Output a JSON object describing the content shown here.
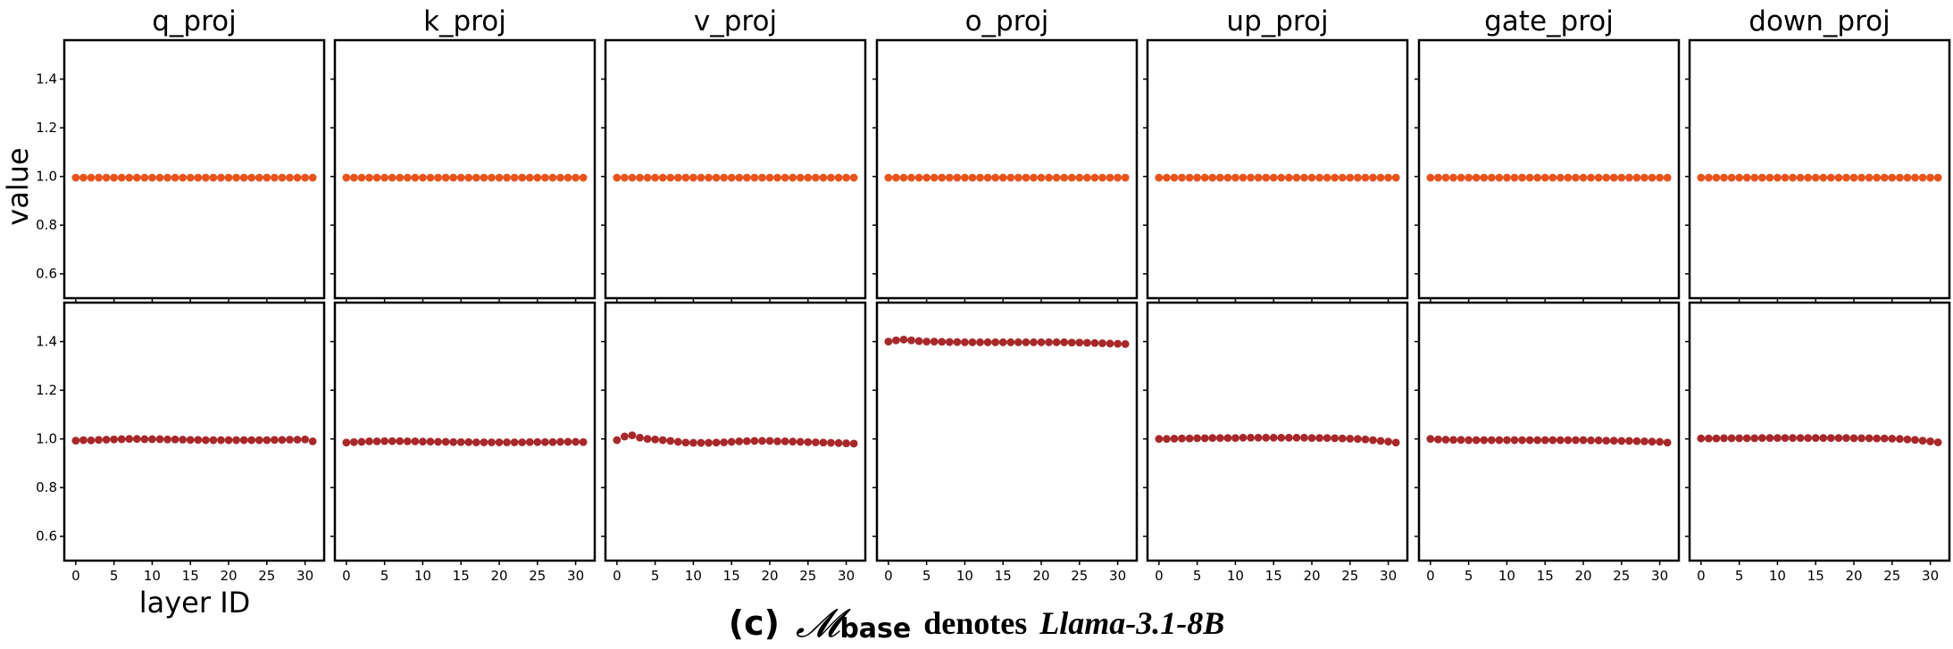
{
  "chart_data": {
    "type": "scatter",
    "layout": "grid of 2 rows x 7 columns",
    "columns": [
      "q_proj",
      "k_proj",
      "v_proj",
      "o_proj",
      "up_proj",
      "gate_proj",
      "down_proj"
    ],
    "xlabel": "layer ID",
    "ylabel": "value",
    "xlim": [
      -1.5,
      32.5
    ],
    "ylim": [
      0.5,
      1.56
    ],
    "xticks": [
      0,
      5,
      10,
      15,
      20,
      25,
      30
    ],
    "yticks": [
      0.6,
      0.8,
      1.0,
      1.2,
      1.4
    ],
    "x": [
      0,
      1,
      2,
      3,
      4,
      5,
      6,
      7,
      8,
      9,
      10,
      11,
      12,
      13,
      14,
      15,
      16,
      17,
      18,
      19,
      20,
      21,
      22,
      23,
      24,
      25,
      26,
      27,
      28,
      29,
      30,
      31
    ],
    "rows": [
      {
        "color": "#e8531c",
        "series": [
          {
            "name": "q_proj",
            "values": [
              0.995,
              0.995,
              0.995,
              0.995,
              0.995,
              0.995,
              0.995,
              0.995,
              0.995,
              0.995,
              0.995,
              0.995,
              0.995,
              0.995,
              0.995,
              0.995,
              0.995,
              0.995,
              0.995,
              0.995,
              0.995,
              0.995,
              0.995,
              0.995,
              0.995,
              0.995,
              0.995,
              0.995,
              0.995,
              0.995,
              0.995,
              0.995
            ]
          },
          {
            "name": "k_proj",
            "values": [
              0.995,
              0.995,
              0.995,
              0.995,
              0.995,
              0.995,
              0.995,
              0.995,
              0.995,
              0.995,
              0.995,
              0.995,
              0.995,
              0.995,
              0.995,
              0.995,
              0.995,
              0.995,
              0.995,
              0.995,
              0.995,
              0.995,
              0.995,
              0.995,
              0.995,
              0.995,
              0.995,
              0.995,
              0.995,
              0.995,
              0.995,
              0.995
            ]
          },
          {
            "name": "v_proj",
            "values": [
              0.995,
              0.995,
              0.995,
              0.995,
              0.995,
              0.995,
              0.995,
              0.995,
              0.995,
              0.995,
              0.995,
              0.995,
              0.995,
              0.995,
              0.995,
              0.995,
              0.995,
              0.995,
              0.995,
              0.995,
              0.995,
              0.995,
              0.995,
              0.995,
              0.995,
              0.995,
              0.995,
              0.995,
              0.995,
              0.995,
              0.995,
              0.995
            ]
          },
          {
            "name": "o_proj",
            "values": [
              0.995,
              0.995,
              0.995,
              0.995,
              0.995,
              0.995,
              0.995,
              0.995,
              0.995,
              0.995,
              0.995,
              0.995,
              0.995,
              0.995,
              0.995,
              0.995,
              0.995,
              0.995,
              0.995,
              0.995,
              0.995,
              0.995,
              0.995,
              0.995,
              0.995,
              0.995,
              0.995,
              0.995,
              0.995,
              0.995,
              0.995,
              0.995
            ]
          },
          {
            "name": "up_proj",
            "values": [
              0.995,
              0.995,
              0.995,
              0.995,
              0.995,
              0.995,
              0.995,
              0.995,
              0.995,
              0.995,
              0.995,
              0.995,
              0.995,
              0.995,
              0.995,
              0.995,
              0.995,
              0.995,
              0.995,
              0.995,
              0.995,
              0.995,
              0.995,
              0.995,
              0.995,
              0.995,
              0.995,
              0.995,
              0.995,
              0.995,
              0.995,
              0.995
            ]
          },
          {
            "name": "gate_proj",
            "values": [
              0.995,
              0.995,
              0.995,
              0.995,
              0.995,
              0.995,
              0.995,
              0.995,
              0.995,
              0.995,
              0.995,
              0.995,
              0.995,
              0.995,
              0.995,
              0.995,
              0.995,
              0.995,
              0.995,
              0.995,
              0.995,
              0.995,
              0.995,
              0.995,
              0.995,
              0.995,
              0.995,
              0.995,
              0.995,
              0.995,
              0.995,
              0.995
            ]
          },
          {
            "name": "down_proj",
            "values": [
              0.995,
              0.995,
              0.995,
              0.995,
              0.995,
              0.995,
              0.995,
              0.995,
              0.995,
              0.995,
              0.995,
              0.995,
              0.995,
              0.995,
              0.995,
              0.995,
              0.995,
              0.995,
              0.995,
              0.995,
              0.995,
              0.995,
              0.995,
              0.995,
              0.995,
              0.995,
              0.995,
              0.995,
              0.995,
              0.995,
              0.995,
              0.995
            ]
          }
        ]
      },
      {
        "color": "#a8282a",
        "series": [
          {
            "name": "q_proj",
            "values": [
              0.993,
              0.995,
              0.994,
              0.996,
              0.997,
              0.998,
              0.999,
              1.0,
              1.0,
              0.999,
              0.999,
              0.999,
              0.998,
              0.998,
              0.997,
              0.996,
              0.996,
              0.995,
              0.995,
              0.995,
              0.995,
              0.995,
              0.995,
              0.995,
              0.995,
              0.995,
              0.996,
              0.996,
              0.997,
              0.997,
              0.998,
              0.99
            ]
          },
          {
            "name": "k_proj",
            "values": [
              0.985,
              0.987,
              0.988,
              0.99,
              0.99,
              0.991,
              0.991,
              0.991,
              0.99,
              0.99,
              0.989,
              0.989,
              0.988,
              0.988,
              0.987,
              0.987,
              0.987,
              0.986,
              0.986,
              0.986,
              0.986,
              0.986,
              0.986,
              0.986,
              0.987,
              0.987,
              0.987,
              0.987,
              0.988,
              0.988,
              0.988,
              0.987
            ]
          },
          {
            "name": "v_proj",
            "values": [
              0.995,
              1.01,
              1.015,
              1.005,
              1.0,
              0.998,
              0.995,
              0.992,
              0.988,
              0.985,
              0.984,
              0.984,
              0.984,
              0.985,
              0.986,
              0.988,
              0.99,
              0.991,
              0.992,
              0.992,
              0.992,
              0.99,
              0.99,
              0.989,
              0.988,
              0.987,
              0.986,
              0.985,
              0.984,
              0.983,
              0.982,
              0.981
            ]
          },
          {
            "name": "o_proj",
            "values": [
              1.4,
              1.405,
              1.408,
              1.405,
              1.402,
              1.4,
              1.4,
              1.399,
              1.398,
              1.398,
              1.397,
              1.397,
              1.397,
              1.397,
              1.397,
              1.397,
              1.397,
              1.397,
              1.397,
              1.397,
              1.397,
              1.397,
              1.397,
              1.397,
              1.396,
              1.396,
              1.395,
              1.394,
              1.393,
              1.392,
              1.391,
              1.39
            ]
          },
          {
            "name": "up_proj",
            "values": [
              1.0,
              1.0,
              1.001,
              1.002,
              1.002,
              1.003,
              1.003,
              1.004,
              1.004,
              1.004,
              1.004,
              1.005,
              1.005,
              1.005,
              1.005,
              1.005,
              1.005,
              1.005,
              1.005,
              1.005,
              1.004,
              1.004,
              1.004,
              1.003,
              1.002,
              1.001,
              1.0,
              0.998,
              0.995,
              0.992,
              0.989,
              0.985
            ]
          },
          {
            "name": "gate_proj",
            "values": [
              1.0,
              0.998,
              0.997,
              0.996,
              0.996,
              0.995,
              0.995,
              0.995,
              0.995,
              0.995,
              0.995,
              0.995,
              0.995,
              0.995,
              0.995,
              0.995,
              0.995,
              0.995,
              0.995,
              0.995,
              0.995,
              0.994,
              0.994,
              0.993,
              0.993,
              0.992,
              0.992,
              0.991,
              0.99,
              0.989,
              0.988,
              0.985
            ]
          },
          {
            "name": "down_proj",
            "values": [
              1.002,
              1.002,
              1.002,
              1.003,
              1.003,
              1.003,
              1.003,
              1.003,
              1.004,
              1.004,
              1.004,
              1.004,
              1.004,
              1.004,
              1.004,
              1.004,
              1.004,
              1.004,
              1.004,
              1.004,
              1.003,
              1.003,
              1.003,
              1.002,
              1.002,
              1.001,
              1.0,
              0.998,
              0.996,
              0.993,
              0.99,
              0.986
            ]
          }
        ]
      }
    ]
  },
  "caption": {
    "label": "(c)",
    "model_symbol": "𝓜",
    "model_subscript": "base",
    "middle": "denotes",
    "model_name": "Llama-3.1-8B"
  }
}
